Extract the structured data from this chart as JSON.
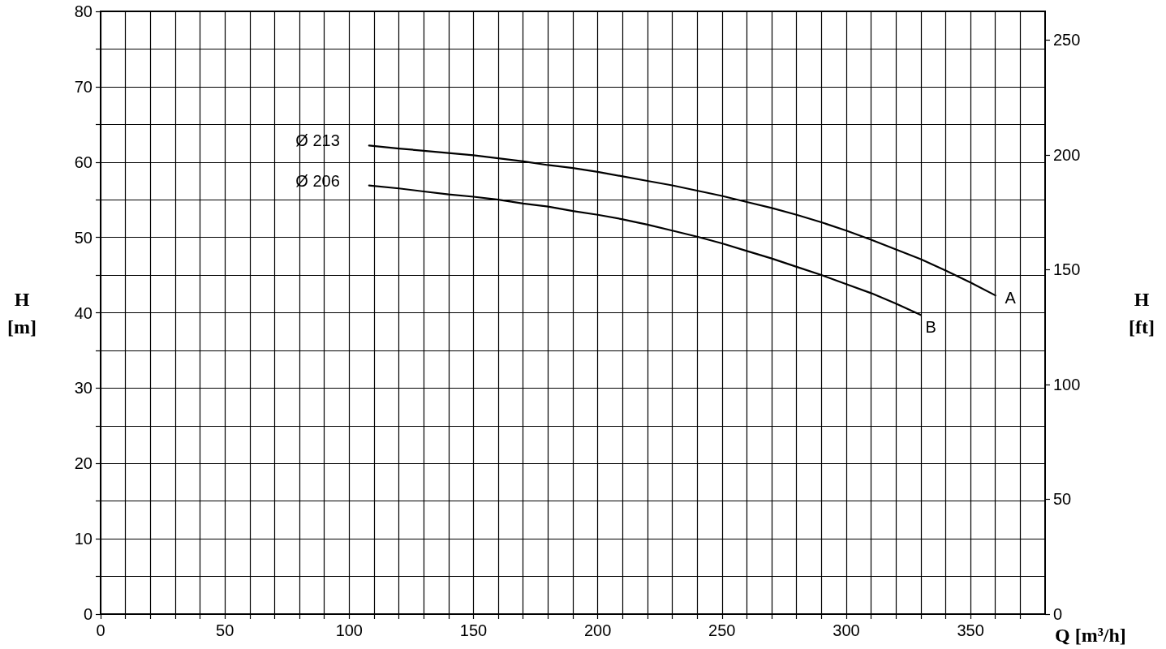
{
  "chart_data": {
    "type": "line",
    "xlabel": "Q [m³/h]",
    "ylabel": "H [m]",
    "y2label": "H [ft]",
    "xlim": [
      0,
      380
    ],
    "xticks": [
      0,
      {
        "value": 10,
        "label": null
      },
      {
        "value": 20,
        "label": null
      },
      {
        "value": 30,
        "label": null
      },
      {
        "value": 40,
        "label": null
      },
      50,
      {
        "value": 60,
        "label": null
      },
      {
        "value": 70,
        "label": null
      },
      {
        "value": 80,
        "label": null
      },
      {
        "value": 90,
        "label": null
      },
      100,
      {
        "value": 110,
        "label": null
      },
      {
        "value": 120,
        "label": null
      },
      {
        "value": 130,
        "label": null
      },
      {
        "value": 140,
        "label": null
      },
      150,
      {
        "value": 160,
        "label": null
      },
      {
        "value": 170,
        "label": null
      },
      {
        "value": 180,
        "label": null
      },
      {
        "value": 190,
        "label": null
      },
      200,
      {
        "value": 210,
        "label": null
      },
      {
        "value": 220,
        "label": null
      },
      {
        "value": 230,
        "label": null
      },
      {
        "value": 240,
        "label": null
      },
      250,
      {
        "value": 260,
        "label": null
      },
      {
        "value": 270,
        "label": null
      },
      {
        "value": 280,
        "label": null
      },
      {
        "value": 290,
        "label": null
      },
      300,
      {
        "value": 310,
        "label": null
      },
      {
        "value": 320,
        "label": null
      },
      {
        "value": 330,
        "label": null
      },
      {
        "value": 340,
        "label": null
      },
      350,
      {
        "value": 360,
        "label": null
      },
      {
        "value": 370,
        "label": null
      }
    ],
    "ylim": [
      0,
      80
    ],
    "yticks": [
      0,
      {
        "value": 5,
        "label": null
      },
      10,
      {
        "value": 15,
        "label": null
      },
      20,
      {
        "value": 25,
        "label": null
      },
      30,
      {
        "value": 35,
        "label": null
      },
      40,
      {
        "value": 45,
        "label": null
      },
      50,
      {
        "value": 55,
        "label": null
      },
      60,
      {
        "value": 65,
        "label": null
      },
      70,
      {
        "value": 75,
        "label": null
      },
      80
    ],
    "y2lim": [
      0,
      262.5
    ],
    "y2ticks": [
      0,
      50,
      100,
      150,
      200,
      250
    ],
    "grid": true,
    "marker": "none",
    "line_style": "solid",
    "series": [
      {
        "name": "Ø 213",
        "color": "#000000",
        "x": [
          108,
          120,
          130,
          140,
          150,
          160,
          170,
          180,
          190,
          200,
          210,
          220,
          230,
          240,
          250,
          260,
          270,
          280,
          290,
          300,
          310,
          320,
          330,
          340,
          350,
          360
        ],
        "values": [
          62.2,
          61.8,
          61.5,
          61.2,
          60.9,
          60.5,
          60.1,
          59.6,
          59.2,
          58.7,
          58.1,
          57.5,
          56.9,
          56.2,
          55.5,
          54.7,
          53.9,
          53.0,
          52.0,
          50.9,
          49.7,
          48.4,
          47.1,
          45.6,
          44.0,
          42.3
        ]
      },
      {
        "name": "Ø 206",
        "color": "#000000",
        "x": [
          108,
          120,
          130,
          140,
          150,
          160,
          170,
          180,
          190,
          200,
          210,
          220,
          230,
          240,
          250,
          260,
          270,
          280,
          290,
          300,
          310,
          320,
          330
        ],
        "values": [
          56.9,
          56.5,
          56.1,
          55.7,
          55.4,
          55.0,
          54.5,
          54.1,
          53.5,
          53.0,
          52.4,
          51.7,
          50.9,
          50.1,
          49.2,
          48.2,
          47.2,
          46.1,
          45.0,
          43.8,
          42.6,
          41.2,
          39.7
        ]
      }
    ],
    "annotations": [
      {
        "text": "A",
        "x": 366,
        "y": 42.0
      },
      {
        "text": "B",
        "x": 334,
        "y": 38.1
      }
    ]
  }
}
